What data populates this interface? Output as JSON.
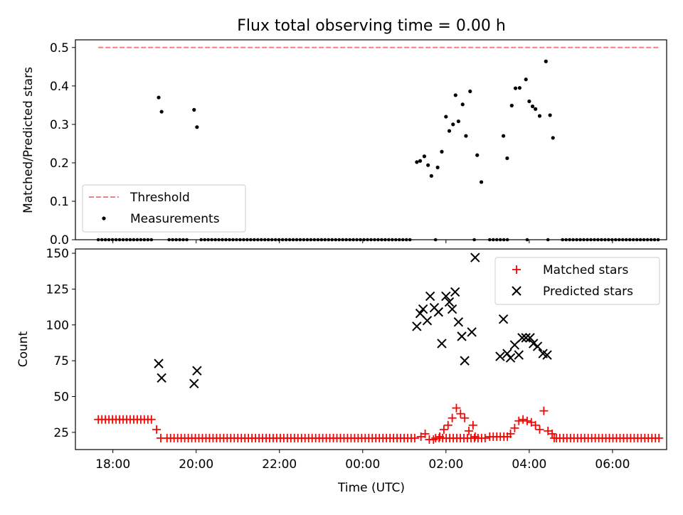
{
  "figure_title": "Flux total observing time = 0.00 h",
  "x_axis": {
    "label": "Time (UTC)",
    "tick_labels": [
      "18:00",
      "20:00",
      "22:00",
      "00:00",
      "02:00",
      "04:00",
      "06:00"
    ]
  },
  "top_panel": {
    "ylabel": "Matched/Predicted stars",
    "legend": {
      "threshold": "Threshold",
      "measurements": "Measurements"
    }
  },
  "bottom_panel": {
    "ylabel": "Count",
    "legend": {
      "matched": "Matched stars",
      "predicted": "Predicted stars"
    }
  },
  "colors": {
    "threshold": "#f08080",
    "measurement": "#000000",
    "matched": "#ff0000",
    "predicted": "#000000"
  },
  "chart_data": [
    {
      "type": "scatter",
      "title": "Flux total observing time = 0.00 h",
      "xlabel": "Time (UTC)",
      "ylabel": "Matched/Predicted stars",
      "x_unit": "hours since 17:00 UTC",
      "xlim": [
        0.1,
        14.3
      ],
      "ylim": [
        0,
        0.52
      ],
      "grid": false,
      "legend_position": "lower-left",
      "threshold": {
        "name": "Threshold",
        "value": 0.5,
        "x_range": [
          0.65,
          14.15
        ]
      },
      "series": [
        {
          "name": "Measurements",
          "points": [
            [
              2.1,
              0.37
            ],
            [
              2.17,
              0.333
            ],
            [
              2.95,
              0.338
            ],
            [
              3.02,
              0.293
            ],
            [
              8.3,
              0.202
            ],
            [
              8.38,
              0.205
            ],
            [
              8.48,
              0.217
            ],
            [
              8.57,
              0.194
            ],
            [
              8.65,
              0.166
            ],
            [
              8.8,
              0.188
            ],
            [
              8.9,
              0.229
            ],
            [
              9.0,
              0.32
            ],
            [
              9.08,
              0.283
            ],
            [
              9.17,
              0.3
            ],
            [
              9.23,
              0.376
            ],
            [
              9.3,
              0.308
            ],
            [
              9.4,
              0.352
            ],
            [
              9.48,
              0.27
            ],
            [
              9.58,
              0.386
            ],
            [
              9.75,
              0.22
            ],
            [
              9.85,
              0.15
            ],
            [
              10.38,
              0.27
            ],
            [
              10.47,
              0.212
            ],
            [
              10.58,
              0.349
            ],
            [
              10.67,
              0.394
            ],
            [
              10.77,
              0.395
            ],
            [
              10.92,
              0.417
            ],
            [
              11.0,
              0.36
            ],
            [
              11.08,
              0.347
            ],
            [
              11.15,
              0.34
            ],
            [
              11.25,
              0.322
            ],
            [
              11.4,
              0.464
            ],
            [
              11.5,
              0.324
            ],
            [
              11.57,
              0.265
            ]
          ],
          "zero_ranges": [
            [
              0.65,
              2.0
            ],
            [
              2.35,
              2.85
            ],
            [
              3.12,
              8.15
            ],
            [
              8.75,
              8.8
            ],
            [
              9.68,
              9.7
            ],
            [
              10.05,
              10.5
            ],
            [
              10.95,
              10.98
            ],
            [
              11.45,
              11.48
            ],
            [
              11.8,
              14.15
            ]
          ]
        }
      ]
    },
    {
      "type": "scatter",
      "xlabel": "Time (UTC)",
      "ylabel": "Count",
      "x_unit": "hours since 17:00 UTC",
      "xlim": [
        0.1,
        14.3
      ],
      "ylim": [
        13,
        153
      ],
      "grid": false,
      "legend_position": "top-right",
      "series": [
        {
          "name": "Matched stars",
          "marker": "plus",
          "segments": [
            {
              "from": 0.65,
              "to": 2.0,
              "value": 34
            },
            {
              "from": 2.3,
              "to": 8.3,
              "value": 21
            },
            {
              "from": 8.75,
              "to": 10.0,
              "value": 21
            },
            {
              "from": 10.05,
              "to": 10.5,
              "value": 22
            },
            {
              "from": 11.65,
              "to": 14.15,
              "value": 21
            }
          ],
          "points": [
            [
              2.05,
              27
            ],
            [
              2.15,
              21
            ],
            [
              8.4,
              22
            ],
            [
              8.5,
              24
            ],
            [
              8.6,
              20
            ],
            [
              8.7,
              20
            ],
            [
              8.85,
              22
            ],
            [
              8.95,
              27
            ],
            [
              9.05,
              30
            ],
            [
              9.15,
              35
            ],
            [
              9.25,
              42
            ],
            [
              9.35,
              38
            ],
            [
              9.45,
              35
            ],
            [
              9.55,
              26
            ],
            [
              9.65,
              30
            ],
            [
              9.7,
              22
            ],
            [
              10.55,
              24
            ],
            [
              10.65,
              28
            ],
            [
              10.75,
              33
            ],
            [
              10.85,
              34
            ],
            [
              10.95,
              33
            ],
            [
              11.05,
              32
            ],
            [
              11.15,
              30
            ],
            [
              11.25,
              27
            ],
            [
              11.35,
              40
            ],
            [
              11.45,
              26
            ],
            [
              11.55,
              24
            ],
            [
              11.6,
              21
            ]
          ]
        },
        {
          "name": "Predicted stars",
          "marker": "x",
          "points": [
            [
              2.1,
              73
            ],
            [
              2.17,
              63
            ],
            [
              2.95,
              59
            ],
            [
              3.02,
              68
            ],
            [
              8.3,
              99
            ],
            [
              8.38,
              108
            ],
            [
              8.45,
              111
            ],
            [
              8.55,
              103
            ],
            [
              8.62,
              120
            ],
            [
              8.72,
              112
            ],
            [
              8.82,
              109
            ],
            [
              8.9,
              87
            ],
            [
              9.0,
              120
            ],
            [
              9.08,
              116
            ],
            [
              9.15,
              111
            ],
            [
              9.22,
              123
            ],
            [
              9.3,
              102
            ],
            [
              9.38,
              92
            ],
            [
              9.45,
              75
            ],
            [
              9.62,
              95
            ],
            [
              9.7,
              147
            ],
            [
              10.3,
              78
            ],
            [
              10.38,
              104
            ],
            [
              10.47,
              80
            ],
            [
              10.55,
              77
            ],
            [
              10.65,
              86
            ],
            [
              10.75,
              79
            ],
            [
              10.83,
              91
            ],
            [
              10.92,
              91
            ],
            [
              11.02,
              91
            ],
            [
              11.1,
              87
            ],
            [
              11.2,
              85
            ],
            [
              11.33,
              80
            ],
            [
              11.43,
              79
            ]
          ]
        }
      ]
    }
  ]
}
